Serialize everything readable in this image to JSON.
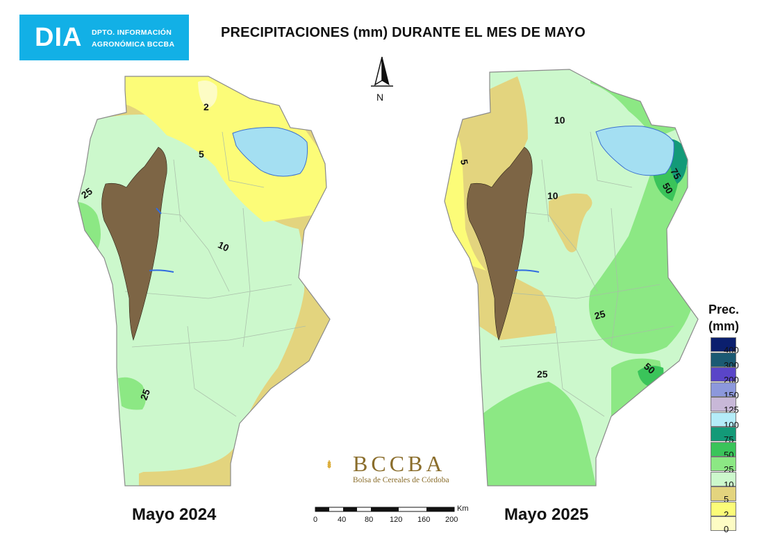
{
  "header": {
    "logo_main": "DIA",
    "logo_sub_line1": "DPTO. INFORMACIÓN",
    "logo_sub_line2": "AGRONÓMICA BCCBA",
    "title": "PRECIPITACIONES (mm) DURANTE EL MES DE MAYO"
  },
  "north_arrow": {
    "label": "N"
  },
  "maps": [
    {
      "year_label": "Mayo 2024",
      "contour_labels": [
        "2",
        "5",
        "25",
        "10",
        "25"
      ]
    },
    {
      "year_label": "Mayo 2025",
      "contour_labels": [
        "10",
        "5",
        "10",
        "75",
        "50",
        "25",
        "50",
        "25"
      ]
    }
  ],
  "branding": {
    "name": "BCCBA",
    "subtitle": "Bolsa de Cereales de Córdoba"
  },
  "scale_bar": {
    "unit": "Km",
    "ticks": [
      "0",
      "40",
      "80",
      "120",
      "160",
      "200"
    ]
  },
  "legend": {
    "title_line1": "Prec.",
    "title_line2": "(mm)",
    "items": [
      {
        "label": "400",
        "color": "#0b1f6e"
      },
      {
        "label": "300",
        "color": "#1b5a73"
      },
      {
        "label": "200",
        "color": "#5a45c8"
      },
      {
        "label": "150",
        "color": "#8c98dc"
      },
      {
        "label": "125",
        "color": "#c8b8d8"
      },
      {
        "label": "100",
        "color": "#b4ecf8"
      },
      {
        "label": "75",
        "color": "#139a78"
      },
      {
        "label": "50",
        "color": "#3ac45a"
      },
      {
        "label": "25",
        "color": "#8ce884"
      },
      {
        "label": "10",
        "color": "#ccf8cc"
      },
      {
        "label": "5",
        "color": "#e3d47e"
      },
      {
        "label": "2",
        "color": "#fcfc78"
      },
      {
        "label": "0",
        "color": "#fdfcc4"
      }
    ]
  },
  "colors": {
    "mountains": "#7d6545",
    "lake": "#a4dff2",
    "water_lines": "#2f6be0",
    "logo_bg": "#12b0e6",
    "brand_gold": "#d9a72b"
  }
}
